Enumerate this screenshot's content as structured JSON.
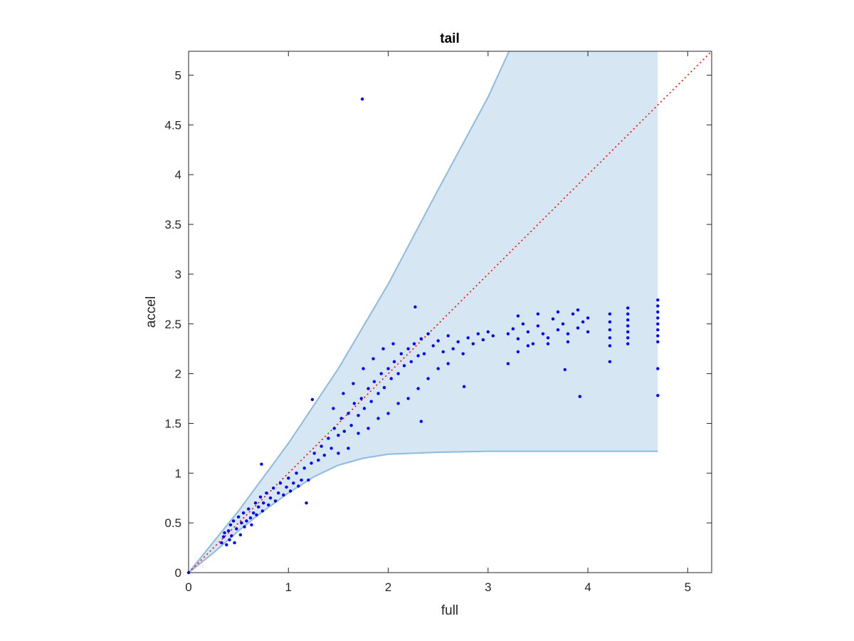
{
  "chart_data": {
    "type": "scatter",
    "title": "tail",
    "xlabel": "full",
    "ylabel": "accel",
    "xlim": [
      0,
      5.24
    ],
    "ylim": [
      0,
      5.24
    ],
    "xticks": [
      0,
      1,
      2,
      3,
      4,
      5
    ],
    "xtick_labels": [
      "0",
      "1",
      "2",
      "3",
      "4",
      "5"
    ],
    "yticks": [
      0,
      0.5,
      1,
      1.5,
      2,
      2.5,
      3,
      3.5,
      4,
      4.5,
      5
    ],
    "ytick_labels": [
      "0",
      "0.5",
      "1",
      "1.5",
      "2",
      "2.5",
      "3",
      "3.5",
      "4",
      "4.5",
      "5"
    ],
    "grid": false,
    "colors": {
      "points": "#0000ff",
      "band_fill": "#d6e6f2",
      "band_edge": "#8dbbe0",
      "reference": "#ff0000"
    },
    "reference_line": {
      "style": "dotted",
      "from": [
        0,
        0
      ],
      "to": [
        5.24,
        5.24
      ]
    },
    "band": {
      "x_end": 4.7,
      "upper": [
        [
          0,
          0
        ],
        [
          0.5,
          0.62
        ],
        [
          1,
          1.3
        ],
        [
          1.5,
          2.05
        ],
        [
          2,
          2.9
        ],
        [
          2.5,
          3.85
        ],
        [
          3,
          4.78
        ],
        [
          3.21,
          5.24
        ]
      ],
      "lower": [
        [
          0,
          0
        ],
        [
          0.25,
          0.2
        ],
        [
          0.5,
          0.42
        ],
        [
          0.75,
          0.62
        ],
        [
          1,
          0.8
        ],
        [
          1.25,
          0.96
        ],
        [
          1.5,
          1.08
        ],
        [
          1.75,
          1.15
        ],
        [
          2,
          1.19
        ],
        [
          2.5,
          1.21
        ],
        [
          3,
          1.22
        ],
        [
          4.7,
          1.22
        ]
      ]
    },
    "series": [
      {
        "points": [
          [
            0,
            0
          ],
          [
            1.74,
            4.76
          ],
          [
            2.27,
            2.67
          ],
          [
            1.24,
            1.74
          ],
          [
            0.73,
            1.09
          ],
          [
            2.33,
            1.52
          ],
          [
            2.76,
            1.87
          ],
          [
            3.92,
            1.77
          ],
          [
            4.7,
            1.78
          ],
          [
            4.7,
            2.05
          ],
          [
            3.77,
            2.04
          ],
          [
            3.2,
            2.1
          ],
          [
            4.22,
            2.12
          ],
          [
            1.18,
            0.7
          ],
          [
            0.33,
            0.3
          ],
          [
            0.35,
            0.36
          ],
          [
            0.36,
            0.4
          ],
          [
            0.38,
            0.28
          ],
          [
            0.4,
            0.42
          ],
          [
            0.41,
            0.33
          ],
          [
            0.42,
            0.48
          ],
          [
            0.43,
            0.37
          ],
          [
            0.45,
            0.52
          ],
          [
            0.46,
            0.3
          ],
          [
            0.48,
            0.44
          ],
          [
            0.5,
            0.56
          ],
          [
            0.52,
            0.38
          ],
          [
            0.53,
            0.5
          ],
          [
            0.55,
            0.6
          ],
          [
            0.56,
            0.46
          ],
          [
            0.58,
            0.52
          ],
          [
            0.6,
            0.64
          ],
          [
            0.62,
            0.55
          ],
          [
            0.63,
            0.48
          ],
          [
            0.65,
            0.6
          ],
          [
            0.67,
            0.7
          ],
          [
            0.68,
            0.58
          ],
          [
            0.7,
            0.66
          ],
          [
            0.72,
            0.76
          ],
          [
            0.74,
            0.62
          ],
          [
            0.75,
            0.7
          ],
          [
            0.78,
            0.8
          ],
          [
            0.8,
            0.68
          ],
          [
            0.82,
            0.75
          ],
          [
            0.85,
            0.85
          ],
          [
            0.87,
            0.72
          ],
          [
            0.9,
            0.8
          ],
          [
            0.92,
            0.9
          ],
          [
            0.95,
            0.78
          ],
          [
            0.98,
            0.86
          ],
          [
            1,
            0.95
          ],
          [
            1.02,
            0.82
          ],
          [
            1.05,
            0.9
          ],
          [
            1.08,
            1
          ],
          [
            1.1,
            0.87
          ],
          [
            1.13,
            0.93
          ],
          [
            1.16,
            1.05
          ],
          [
            1.2,
            0.93
          ],
          [
            1.23,
            1.1
          ],
          [
            1.26,
            1.2
          ],
          [
            1.3,
            1.13
          ],
          [
            1.33,
            1.27
          ],
          [
            1.36,
            1.18
          ],
          [
            1.4,
            1.35
          ],
          [
            1.43,
            1.25
          ],
          [
            1.46,
            1.45
          ],
          [
            1.5,
            1.38
          ],
          [
            1.53,
            1.55
          ],
          [
            1.56,
            1.42
          ],
          [
            1.6,
            1.6
          ],
          [
            1.63,
            1.48
          ],
          [
            1.66,
            1.7
          ],
          [
            1.7,
            1.58
          ],
          [
            1.73,
            1.75
          ],
          [
            1.76,
            1.65
          ],
          [
            1.8,
            1.85
          ],
          [
            1.83,
            1.72
          ],
          [
            1.86,
            1.92
          ],
          [
            1.9,
            1.8
          ],
          [
            1.93,
            2
          ],
          [
            1.96,
            1.86
          ],
          [
            2,
            2.05
          ],
          [
            2.03,
            1.95
          ],
          [
            2.06,
            2.12
          ],
          [
            2.1,
            2
          ],
          [
            2.13,
            2.2
          ],
          [
            2.16,
            2.08
          ],
          [
            2.2,
            2.25
          ],
          [
            2.23,
            2.12
          ],
          [
            2.26,
            2.3
          ],
          [
            2.3,
            2.18
          ],
          [
            2.33,
            2.35
          ],
          [
            2.36,
            2.2
          ],
          [
            2.4,
            2.4
          ],
          [
            2.45,
            2.28
          ],
          [
            2.5,
            2.33
          ],
          [
            2.55,
            2.22
          ],
          [
            2.6,
            2.38
          ],
          [
            2.65,
            2.25
          ],
          [
            2.7,
            2.32
          ],
          [
            2.75,
            2.2
          ],
          [
            2.8,
            2.36
          ],
          [
            2.85,
            2.3
          ],
          [
            2.9,
            2.4
          ],
          [
            2.95,
            2.34
          ],
          [
            3,
            2.42
          ],
          [
            3.05,
            2.38
          ],
          [
            1.5,
            1.2
          ],
          [
            1.6,
            1.25
          ],
          [
            1.7,
            1.4
          ],
          [
            1.8,
            1.45
          ],
          [
            1.9,
            1.55
          ],
          [
            2,
            1.6
          ],
          [
            2.1,
            1.7
          ],
          [
            2.2,
            1.75
          ],
          [
            2.3,
            1.85
          ],
          [
            2.4,
            1.95
          ],
          [
            2.5,
            2.05
          ],
          [
            2.6,
            2.1
          ],
          [
            1.45,
            1.65
          ],
          [
            1.55,
            1.8
          ],
          [
            1.65,
            1.9
          ],
          [
            1.75,
            2.05
          ],
          [
            1.85,
            2.15
          ],
          [
            1.95,
            2.25
          ],
          [
            2.05,
            2.3
          ],
          [
            3.2,
            2.4
          ],
          [
            3.25,
            2.45
          ],
          [
            3.3,
            2.35
          ],
          [
            3.35,
            2.5
          ],
          [
            3.4,
            2.42
          ],
          [
            3.45,
            2.3
          ],
          [
            3.5,
            2.48
          ],
          [
            3.55,
            2.4
          ],
          [
            3.6,
            2.36
          ],
          [
            3.65,
            2.55
          ],
          [
            3.7,
            2.44
          ],
          [
            3.75,
            2.5
          ],
          [
            3.8,
            2.4
          ],
          [
            3.85,
            2.6
          ],
          [
            3.9,
            2.46
          ],
          [
            3.95,
            2.52
          ],
          [
            4.0,
            2.42
          ],
          [
            4.0,
            2.56
          ],
          [
            3.3,
            2.58
          ],
          [
            3.5,
            2.6
          ],
          [
            3.7,
            2.62
          ],
          [
            3.9,
            2.64
          ],
          [
            3.4,
            2.28
          ],
          [
            3.6,
            2.3
          ],
          [
            3.8,
            2.32
          ],
          [
            3.3,
            2.22
          ],
          [
            4.22,
            2.28
          ],
          [
            4.22,
            2.36
          ],
          [
            4.22,
            2.44
          ],
          [
            4.22,
            2.52
          ],
          [
            4.22,
            2.6
          ],
          [
            4.4,
            2.3
          ],
          [
            4.4,
            2.36
          ],
          [
            4.4,
            2.42
          ],
          [
            4.4,
            2.48
          ],
          [
            4.4,
            2.54
          ],
          [
            4.4,
            2.6
          ],
          [
            4.4,
            2.66
          ],
          [
            4.7,
            2.32
          ],
          [
            4.7,
            2.38
          ],
          [
            4.7,
            2.44
          ],
          [
            4.7,
            2.5
          ],
          [
            4.7,
            2.56
          ],
          [
            4.7,
            2.62
          ],
          [
            4.7,
            2.68
          ],
          [
            4.7,
            2.74
          ]
        ]
      }
    ]
  }
}
